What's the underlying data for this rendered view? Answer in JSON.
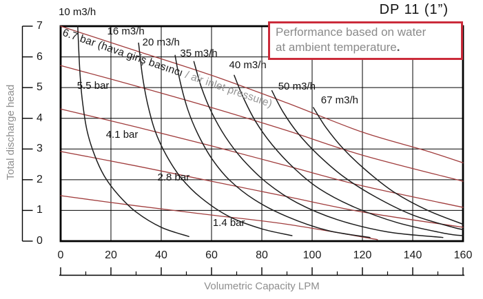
{
  "title": "DP 11  (1”)",
  "note": {
    "line1": "Performance based on water",
    "line2": "at ambient temperature",
    "period": ".",
    "border_color": "#cb2b3a",
    "text_color": "#8a8a8a"
  },
  "colors": {
    "flow_curve": "#1c1c1c",
    "pressure_curve": "#a03c3c",
    "grid": "#000000",
    "axis_text": "#1a1a1a",
    "gray_text": "#8e8e8e"
  },
  "chart_data": {
    "type": "line",
    "title": "DP 11 (1\") pump performance curves",
    "xlabel": "Volumetric Capacity LPM",
    "ylabel": "Total discharge head",
    "xlim": [
      0,
      160
    ],
    "ylim": [
      0,
      7
    ],
    "x_ticks": [
      0,
      20,
      40,
      60,
      80,
      100,
      120,
      140,
      160
    ],
    "x_minor_ticks": [
      10,
      30,
      50,
      70,
      90,
      110,
      130,
      150
    ],
    "y_ticks": [
      7,
      6,
      5,
      4,
      3,
      2,
      1,
      0
    ],
    "grid": true,
    "legend_position": "inline-labels",
    "air_flow_series": [
      {
        "name": "10 m3/h",
        "label_xy": [
          -0.8,
          7.45
        ],
        "points": [
          [
            6.8,
            7.0
          ],
          [
            7.6,
            5.6
          ],
          [
            8.6,
            4.6
          ],
          [
            10.5,
            3.6
          ],
          [
            13.5,
            2.8
          ],
          [
            17.5,
            2.1
          ],
          [
            23,
            1.5
          ],
          [
            30,
            0.95
          ],
          [
            40,
            0.45
          ],
          [
            51,
            0.15
          ]
        ]
      },
      {
        "name": "16 m3/h",
        "label_xy": [
          18.5,
          6.82
        ],
        "points": [
          [
            31,
            6.45
          ],
          [
            32.5,
            5.4
          ],
          [
            34.5,
            4.5
          ],
          [
            37.5,
            3.6
          ],
          [
            42,
            2.8
          ],
          [
            48,
            2.05
          ],
          [
            56,
            1.4
          ],
          [
            67,
            0.8
          ],
          [
            80,
            0.4
          ],
          [
            92,
            0.18
          ]
        ]
      },
      {
        "name": "20 m3/h",
        "label_xy": [
          32.5,
          6.46
        ],
        "points": [
          [
            45.5,
            6.05
          ],
          [
            47.5,
            5.2
          ],
          [
            50.5,
            4.3
          ],
          [
            54.5,
            3.5
          ],
          [
            60,
            2.7
          ],
          [
            67,
            2.0
          ],
          [
            77,
            1.35
          ],
          [
            90,
            0.8
          ],
          [
            106,
            0.35
          ],
          [
            123,
            0.12
          ]
        ]
      },
      {
        "name": "35 m3/h",
        "label_xy": [
          47.5,
          6.1
        ],
        "points": [
          [
            53,
            5.85
          ],
          [
            56,
            5.0
          ],
          [
            60,
            4.2
          ],
          [
            65.5,
            3.4
          ],
          [
            72.5,
            2.65
          ],
          [
            82,
            1.9
          ],
          [
            94,
            1.25
          ],
          [
            110,
            0.7
          ],
          [
            130,
            0.3
          ],
          [
            152,
            0.12
          ]
        ]
      },
      {
        "name": "40 m3/h",
        "label_xy": [
          67.0,
          5.72
        ],
        "points": [
          [
            69,
            5.4
          ],
          [
            72.5,
            4.7
          ],
          [
            77.5,
            3.9
          ],
          [
            84,
            3.15
          ],
          [
            92.5,
            2.4
          ],
          [
            103,
            1.7
          ],
          [
            117,
            1.1
          ],
          [
            134,
            0.6
          ],
          [
            153,
            0.25
          ],
          [
            160,
            0.18
          ]
        ]
      },
      {
        "name": "50 m3/h",
        "label_xy": [
          86.5,
          5.02
        ],
        "points": [
          [
            84,
            4.9
          ],
          [
            88.5,
            4.2
          ],
          [
            94.5,
            3.5
          ],
          [
            102.5,
            2.8
          ],
          [
            112.5,
            2.1
          ],
          [
            125,
            1.45
          ],
          [
            140,
            0.85
          ],
          [
            156,
            0.45
          ],
          [
            160,
            0.38
          ]
        ]
      },
      {
        "name": "67 m3/h",
        "label_xy": [
          103.5,
          4.57
        ],
        "points": [
          [
            100.5,
            4.35
          ],
          [
            105.5,
            3.7
          ],
          [
            112.5,
            3.0
          ],
          [
            121.5,
            2.3
          ],
          [
            132.5,
            1.6
          ],
          [
            146,
            1.0
          ],
          [
            160,
            0.55
          ]
        ]
      }
    ],
    "pressure_series": [
      {
        "name": "6.7 bar",
        "label_rotated": true,
        "points": [
          [
            0,
            7.0
          ],
          [
            30,
            6.2
          ],
          [
            60,
            5.4
          ],
          [
            90,
            4.5
          ],
          [
            120,
            3.55
          ],
          [
            145,
            2.95
          ],
          [
            160,
            2.55
          ]
        ]
      },
      {
        "name": "5.5 bar",
        "label_xy": [
          6.5,
          5.05
        ],
        "points": [
          [
            0,
            5.72
          ],
          [
            30,
            5.05
          ],
          [
            60,
            4.35
          ],
          [
            90,
            3.6
          ],
          [
            120,
            2.8
          ],
          [
            160,
            1.95
          ]
        ]
      },
      {
        "name": "4.1 bar",
        "label_xy": [
          18.0,
          3.45
        ],
        "points": [
          [
            0,
            4.3
          ],
          [
            30,
            3.72
          ],
          [
            60,
            3.1
          ],
          [
            90,
            2.45
          ],
          [
            120,
            1.8
          ],
          [
            160,
            1.1
          ]
        ]
      },
      {
        "name": "2.8 bar",
        "label_xy": [
          38.5,
          2.06
        ],
        "points": [
          [
            0,
            2.92
          ],
          [
            30,
            2.45
          ],
          [
            60,
            1.95
          ],
          [
            90,
            1.45
          ],
          [
            120,
            0.95
          ],
          [
            160,
            0.45
          ]
        ]
      },
      {
        "name": "1.4 bar",
        "label_xy": [
          60.5,
          0.58
        ],
        "points": [
          [
            0,
            1.48
          ],
          [
            30,
            1.15
          ],
          [
            60,
            0.85
          ],
          [
            90,
            0.55
          ],
          [
            126,
            0.05
          ]
        ]
      }
    ],
    "pressure_label": {
      "text_black": "6.7 bar (hava giriş basıncı ",
      "text_gray": "/ air inlet pressure)",
      "angle_deg": 19
    }
  }
}
